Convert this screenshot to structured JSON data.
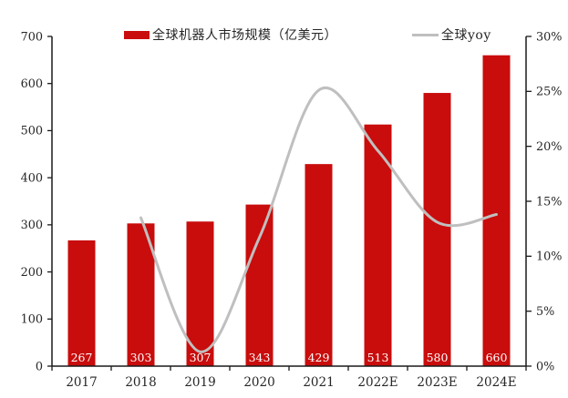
{
  "chart_data": {
    "type": "bar",
    "combo": "bar+line",
    "title": "",
    "categories": [
      "2017",
      "2018",
      "2019",
      "2020",
      "2021",
      "2022E",
      "2023E",
      "2024E"
    ],
    "series": [
      {
        "name": "全球机器人市场规模（亿美元）",
        "type": "bar",
        "axis": "left",
        "values": [
          267,
          303,
          307,
          343,
          429,
          513,
          580,
          660
        ],
        "color": "#C90C0C",
        "data_labels": [
          267,
          303,
          307,
          343,
          429,
          513,
          580,
          660
        ],
        "data_label_color": "#FFFFFF"
      },
      {
        "name": "全球yoy",
        "type": "line",
        "axis": "right",
        "values": [
          null,
          13.5,
          1.3,
          11.7,
          25.1,
          19.6,
          13.1,
          13.8
        ],
        "color": "#BFBFBF",
        "smooth": true
      }
    ],
    "left_axis": {
      "min": 0,
      "max": 700,
      "step": 100,
      "suffix": ""
    },
    "right_axis": {
      "min": 0,
      "max": 30,
      "step": 5,
      "suffix": "%"
    },
    "grid": false,
    "legend_position": "top",
    "axis_color": "#1A1A1A",
    "tick_label_color": "#262626"
  }
}
